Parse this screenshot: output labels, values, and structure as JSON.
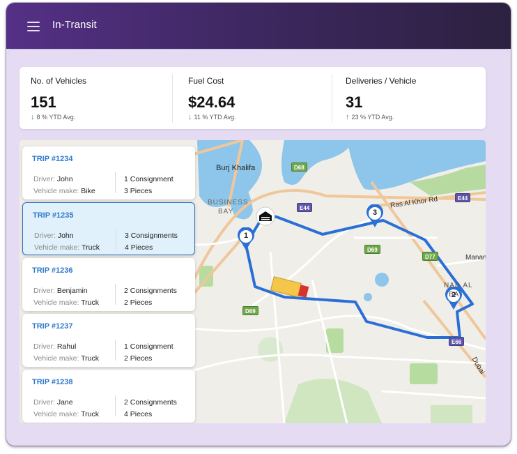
{
  "app": {
    "title": "In-Transit"
  },
  "stats": [
    {
      "label": "No. of Vehicles",
      "value": "151",
      "trend_direction": "down",
      "trend_text": "8 % YTD Avg."
    },
    {
      "label": "Fuel Cost",
      "value": "$24.64",
      "trend_direction": "down",
      "trend_text": "11 % YTD Avg."
    },
    {
      "label": "Deliveries / Vehicle",
      "value": "31",
      "trend_direction": "up",
      "trend_text": "23 % YTD Avg."
    }
  ],
  "trips": [
    {
      "id": "TRIP #1234",
      "driver_label": "Driver:",
      "driver": "John",
      "make_label": "Vehicle make:",
      "make": "Bike",
      "consignments": "1 Consignment",
      "pieces": "3 Pieces"
    },
    {
      "id": "TRIP #1235",
      "driver_label": "Driver:",
      "driver": "John",
      "make_label": "Vehicle make:",
      "make": "Truck",
      "consignments": "3 Consignments",
      "pieces": "4 Pieces",
      "selected": true
    },
    {
      "id": "TRIP #1236",
      "driver_label": "Driver:",
      "driver": "Benjamin",
      "make_label": "Vehicle make:",
      "make": "Truck",
      "consignments": "2 Consignments",
      "pieces": "2 Pieces"
    },
    {
      "id": "TRIP #1237",
      "driver_label": "Driver:",
      "driver": "Rahul",
      "make_label": "Vehicle make:",
      "make": "Truck",
      "consignments": "1 Consignment",
      "pieces": "2 Pieces"
    },
    {
      "id": "TRIP #1238",
      "driver_label": "Driver:",
      "driver": "Jane",
      "make_label": "Vehicle make:",
      "make": "Truck",
      "consignments": "2 Consignments",
      "pieces": "4 Pieces"
    }
  ],
  "map": {
    "labels": {
      "burj_khalifa": "Burj Khalifa",
      "business_bay_1": "BUSINESS",
      "business_bay_2": "BAY",
      "ras_al_khor": "Ras Al Khor Rd",
      "manam": "Manam",
      "nad_al_1": "NAD AL",
      "nad_al_2": "BA",
      "dubai": "Dubai"
    },
    "shields": {
      "d68": "D68",
      "e44_a": "E44",
      "e44_b": "E44",
      "d69_a": "D69",
      "d69_b": "D69",
      "d77": "D77",
      "e66": "E66"
    },
    "stops": [
      "1",
      "2",
      "3"
    ],
    "route_color": "#2b6fd6",
    "marker_color": "#2b6fd6"
  },
  "colors": {
    "header_start": "#553086",
    "header_end": "#2c2140",
    "panel": "#e5dbf3",
    "trip_link": "#2e79c9",
    "trend_green": "#2e9e46"
  }
}
